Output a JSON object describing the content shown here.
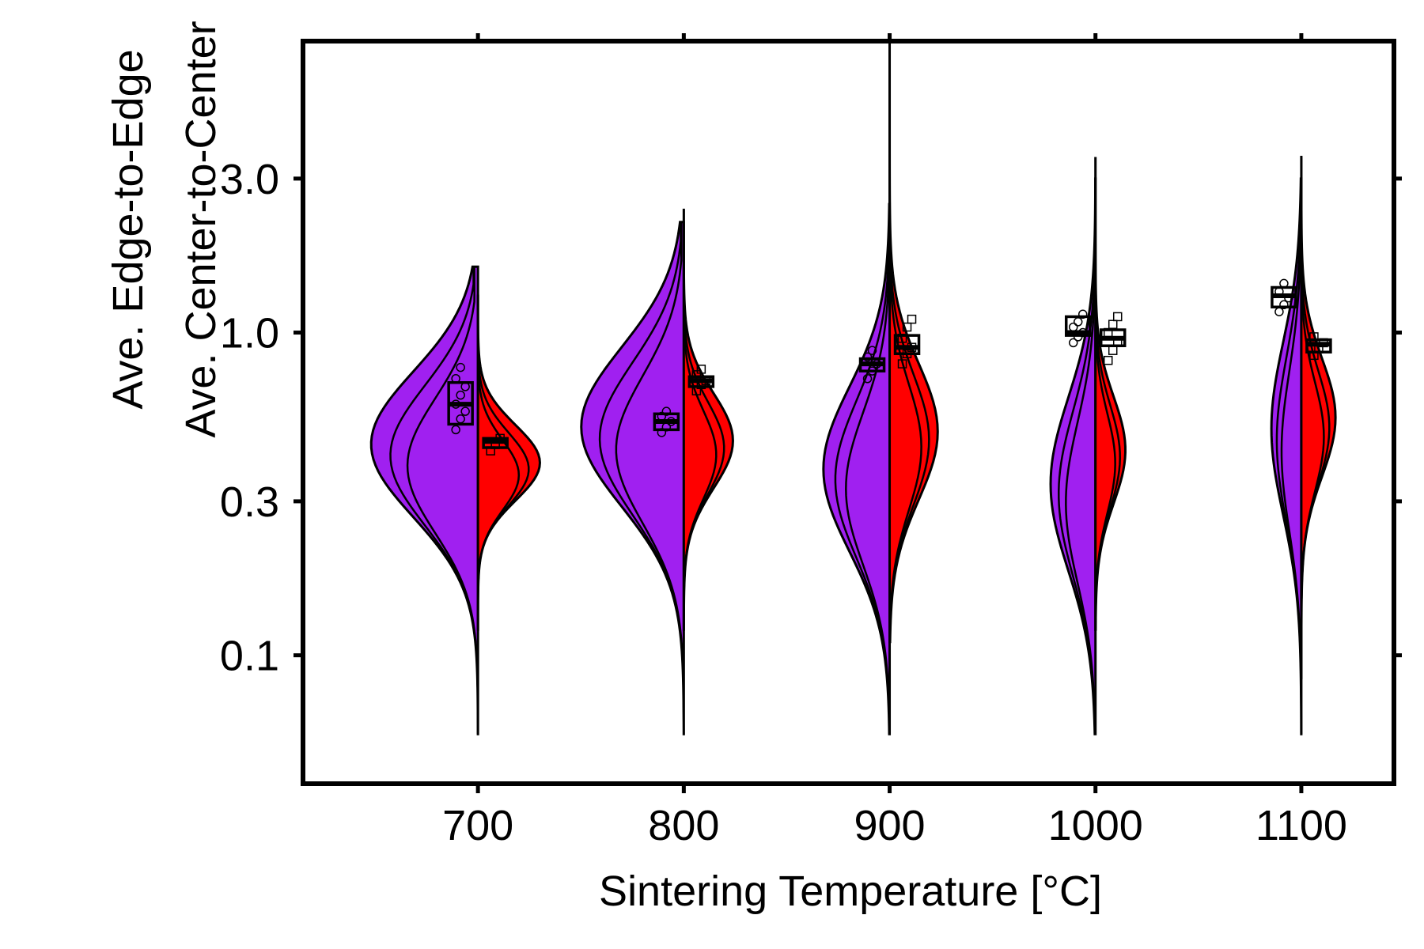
{
  "chart_data": {
    "type": "split-violin",
    "title": "",
    "xlabel": "Sintering Temperature [°C]",
    "ylabel_left_series": "Ave. Edge-to-Edge",
    "ylabel_right_series": "Ave. Center-to-Center",
    "y_scale": "log",
    "ylim": [
      0.04,
      8.0
    ],
    "y_ticks": [
      0.1,
      0.3,
      1.0,
      3.0
    ],
    "y_tick_labels": [
      "0.1",
      "0.3",
      "1.0",
      "3.0"
    ],
    "x_ticks": [
      700,
      800,
      900,
      1000,
      1100
    ],
    "x_tick_labels": [
      "700",
      "800",
      "900",
      "1000",
      "1100"
    ],
    "xlim": [
      615,
      1145
    ],
    "grid": false,
    "legend": "none",
    "series": [
      {
        "name": "Ave. Edge-to-Edge",
        "side": "left",
        "color": "#a020f0",
        "violins": [
          {
            "x": 700,
            "y_min": 0.057,
            "y_max": 1.6,
            "box": {
              "q1": 0.52,
              "median": 0.6,
              "q3": 0.7
            },
            "points": [
              0.5,
              0.54,
              0.57,
              0.6,
              0.64,
              0.68,
              0.72,
              0.78
            ]
          },
          {
            "x": 800,
            "y_min": 0.057,
            "y_max": 2.2,
            "box": {
              "q1": 0.5,
              "median": 0.53,
              "q3": 0.56
            },
            "points": [
              0.49,
              0.51,
              0.53,
              0.55,
              0.57
            ]
          },
          {
            "x": 900,
            "y_min": 0.057,
            "y_max": 2.5,
            "box": {
              "q1": 0.76,
              "median": 0.8,
              "q3": 0.83
            },
            "points": [
              0.72,
              0.76,
              0.8,
              0.84,
              0.88
            ]
          },
          {
            "x": 1000,
            "y_min": 0.057,
            "y_max": 3.0,
            "box": {
              "q1": 0.98,
              "median": 1.0,
              "q3": 1.12
            },
            "points": [
              0.93,
              0.97,
              1.0,
              1.04,
              1.08,
              1.14
            ]
          },
          {
            "x": 1100,
            "y_min": 0.057,
            "y_max": 3.0,
            "box": {
              "q1": 1.2,
              "median": 1.3,
              "q3": 1.38
            },
            "points": [
              1.16,
              1.22,
              1.28,
              1.34,
              1.42
            ]
          }
        ]
      },
      {
        "name": "Ave. Center-to-Center",
        "side": "right",
        "color": "#ff0000",
        "violins": [
          {
            "x": 700,
            "y_min": 0.12,
            "y_max": 1.3,
            "box": {
              "q1": 0.44,
              "median": 0.46,
              "q3": 0.47
            },
            "points": [
              0.43,
              0.45,
              0.47
            ]
          },
          {
            "x": 800,
            "y_min": 0.12,
            "y_max": 2.4,
            "box": {
              "q1": 0.68,
              "median": 0.71,
              "q3": 0.73
            },
            "points": [
              0.66,
              0.69,
              0.71,
              0.74,
              0.77
            ]
          },
          {
            "x": 900,
            "y_min": 0.11,
            "y_max": 8.0,
            "box": {
              "q1": 0.86,
              "median": 0.9,
              "q3": 0.98
            },
            "points": [
              0.8,
              0.86,
              0.9,
              0.96,
              1.04,
              1.1
            ]
          },
          {
            "x": 1000,
            "y_min": 0.12,
            "y_max": 3.5,
            "box": {
              "q1": 0.91,
              "median": 0.96,
              "q3": 1.02
            },
            "points": [
              0.82,
              0.88,
              0.94,
              1.0,
              1.06,
              1.12
            ]
          },
          {
            "x": 1100,
            "y_min": 0.085,
            "y_max": 3.5,
            "box": {
              "q1": 0.87,
              "median": 0.92,
              "q3": 0.95
            },
            "points": [
              0.85,
              0.89,
              0.93,
              0.97
            ]
          }
        ]
      }
    ]
  }
}
